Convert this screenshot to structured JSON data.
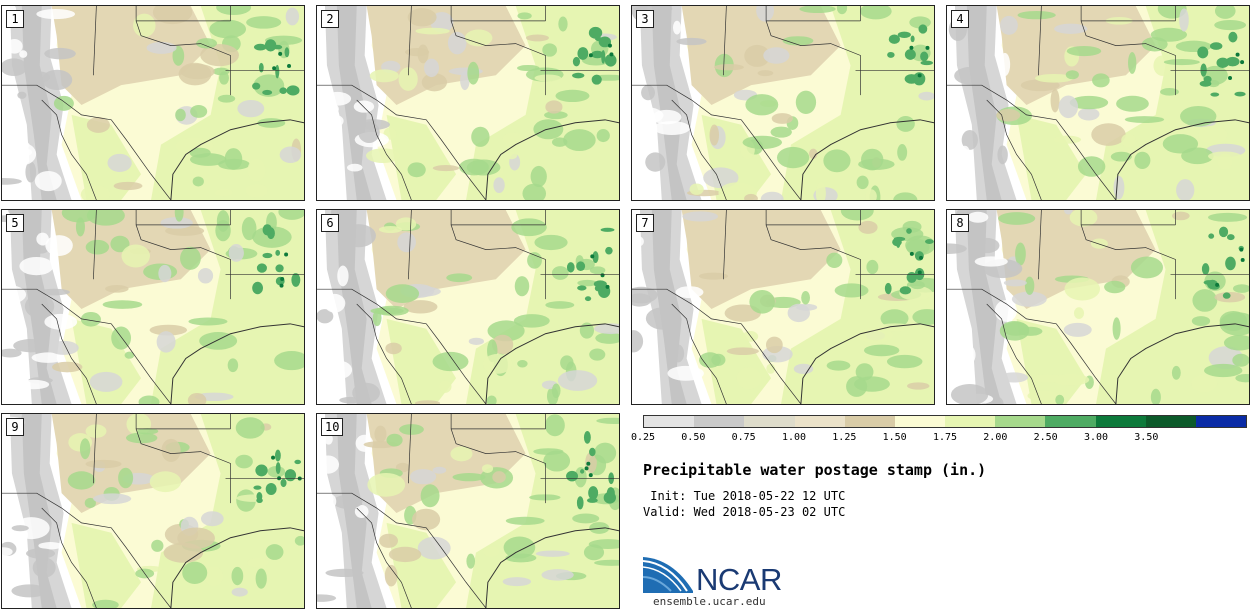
{
  "members": [
    {
      "label": "1"
    },
    {
      "label": "2"
    },
    {
      "label": "3"
    },
    {
      "label": "4"
    },
    {
      "label": "5"
    },
    {
      "label": "6"
    },
    {
      "label": "7"
    },
    {
      "label": "8"
    },
    {
      "label": "9"
    },
    {
      "label": "10"
    }
  ],
  "colorbar": {
    "labels": [
      "0.25",
      "0.50",
      "0.75",
      "1.00",
      "1.25",
      "1.50",
      "1.75",
      "2.00",
      "2.50",
      "3.00",
      "3.50"
    ],
    "colors": [
      "#e3e3e3",
      "#c9c9c9",
      "#dedccb",
      "#ebe2c9",
      "#d9cca7",
      "#fbfbd4",
      "#e6f5b2",
      "#a6d98c",
      "#4eab63",
      "#0d7a3b",
      "#0c5a2a",
      "#0a2ba6"
    ]
  },
  "title": "Precipitable water postage stamp (in.)",
  "init": " Init: Tue 2018-05-22 12 UTC",
  "valid": "Valid: Wed 2018-05-23 02 UTC",
  "logo": {
    "text": "NCAR",
    "site": "ensemble.ucar.edu"
  }
}
